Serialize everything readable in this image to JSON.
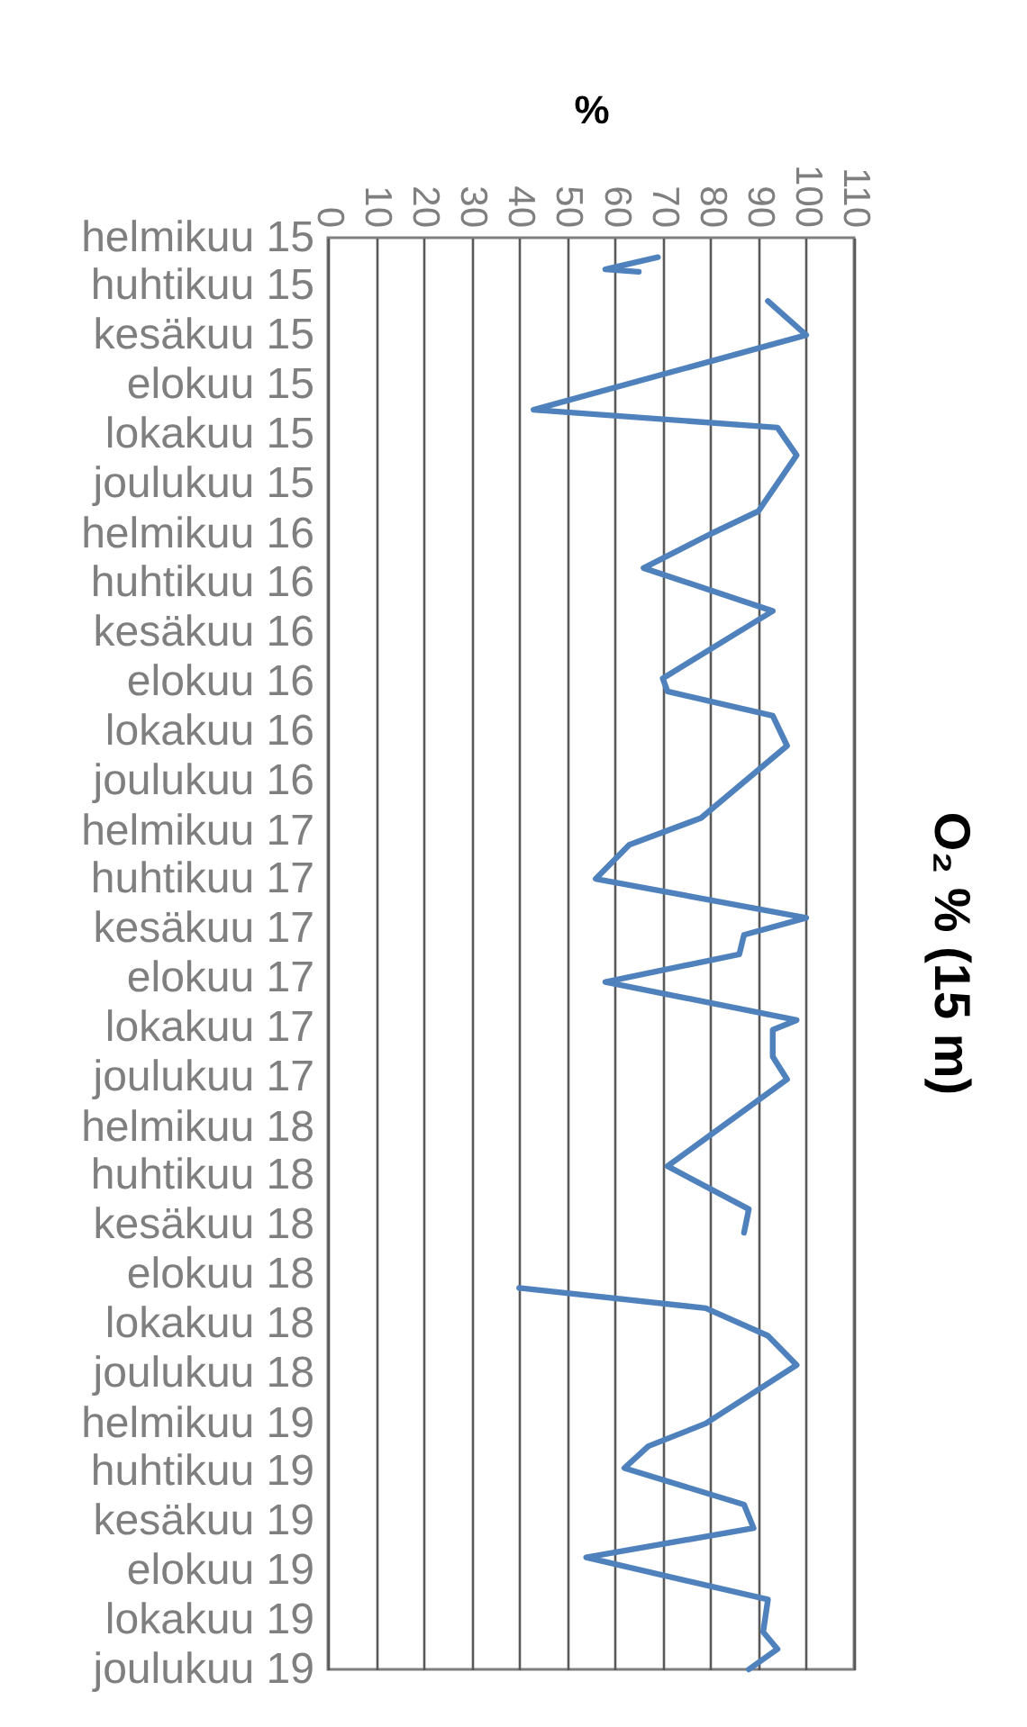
{
  "chart_data": {
    "type": "line",
    "orientation": "horizontal",
    "title": "O₂ % (15 m)",
    "xlabel": "%",
    "x": [
      "2015-02-25",
      "2015-03-12",
      "2015-03-15",
      "2015-04-01",
      "2015-04-20",
      "2015-06-01",
      "2015-09-01",
      "2015-09-23",
      "2015-10-27",
      "2016-01-04",
      "2016-02-01",
      "2016-03-14",
      "2016-05-06",
      "2016-07-28",
      "2016-08-13",
      "2016-09-12",
      "2016-10-19",
      "2017-01-16",
      "2017-02-18",
      "2017-04-01",
      "2017-05-19",
      "2017-06-09",
      "2017-07-03",
      "2017-08-06",
      "2017-09-22",
      "2017-10-04",
      "2017-11-06",
      "2017-12-04",
      "2018-03-21",
      "2018-05-13",
      "2018-06-11",
      "2018-07-15",
      "2018-08-18",
      "2018-09-12",
      "2018-10-16",
      "2018-11-21",
      "2019-02-01",
      "2019-03-01",
      "2019-03-28",
      "2019-05-12",
      "2019-06-10",
      "2019-07-16",
      "2019-09-06",
      "2019-10-16",
      "2019-11-06",
      "2019-12-01"
    ],
    "series": [
      {
        "color": "#4f81bd",
        "values": [
          69,
          58,
          65,
          null,
          92,
          100,
          43,
          94,
          98,
          90,
          80,
          66,
          93,
          70,
          71,
          93,
          96,
          78,
          63,
          56,
          100,
          87,
          86,
          58,
          98,
          93,
          93,
          96,
          71,
          88,
          87,
          null,
          40,
          79,
          92,
          98,
          79,
          67,
          62,
          87,
          89,
          54,
          92,
          91,
          94,
          88
        ]
      }
    ],
    "ylim": [
      "2019-12",
      "2015-02"
    ],
    "yticks": [
      {
        "value": "2015-02",
        "label": "helmikuu 15"
      },
      {
        "value": "2015-04",
        "label": "huhtikuu 15"
      },
      {
        "value": "2015-06",
        "label": "kesäkuu 15"
      },
      {
        "value": "2015-08",
        "label": "elokuu 15"
      },
      {
        "value": "2015-10",
        "label": "lokakuu 15"
      },
      {
        "value": "2015-12",
        "label": "joulukuu 15"
      },
      {
        "value": "2016-02",
        "label": "helmikuu 16"
      },
      {
        "value": "2016-04",
        "label": "huhtikuu 16"
      },
      {
        "value": "2016-06",
        "label": "kesäkuu 16"
      },
      {
        "value": "2016-08",
        "label": "elokuu 16"
      },
      {
        "value": "2016-10",
        "label": "lokakuu 16"
      },
      {
        "value": "2016-12",
        "label": "joulukuu 16"
      },
      {
        "value": "2017-02",
        "label": "helmikuu 17"
      },
      {
        "value": "2017-04",
        "label": "huhtikuu 17"
      },
      {
        "value": "2017-06",
        "label": "kesäkuu 17"
      },
      {
        "value": "2017-08",
        "label": "elokuu 17"
      },
      {
        "value": "2017-10",
        "label": "lokakuu 17"
      },
      {
        "value": "2017-12",
        "label": "joulukuu 17"
      },
      {
        "value": "2018-02",
        "label": "helmikuu 18"
      },
      {
        "value": "2018-04",
        "label": "huhtikuu 18"
      },
      {
        "value": "2018-06",
        "label": "kesäkuu 18"
      },
      {
        "value": "2018-08",
        "label": "elokuu 18"
      },
      {
        "value": "2018-10",
        "label": "lokakuu 18"
      },
      {
        "value": "2018-12",
        "label": "joulukuu 18"
      },
      {
        "value": "2019-02",
        "label": "helmikuu 19"
      },
      {
        "value": "2019-04",
        "label": "huhtikuu 19"
      },
      {
        "value": "2019-06",
        "label": "kesäkuu 19"
      },
      {
        "value": "2019-08",
        "label": "elokuu 19"
      },
      {
        "value": "2019-10",
        "label": "lokakuu 19"
      },
      {
        "value": "2019-12",
        "label": "joulukuu 19"
      }
    ],
    "xlim": [
      0,
      110
    ],
    "xticks": [
      0,
      10,
      20,
      30,
      40,
      50,
      60,
      70,
      80,
      90,
      100,
      110
    ],
    "grid": "x",
    "legend": false,
    "marker": "none",
    "line_style": "solid"
  }
}
